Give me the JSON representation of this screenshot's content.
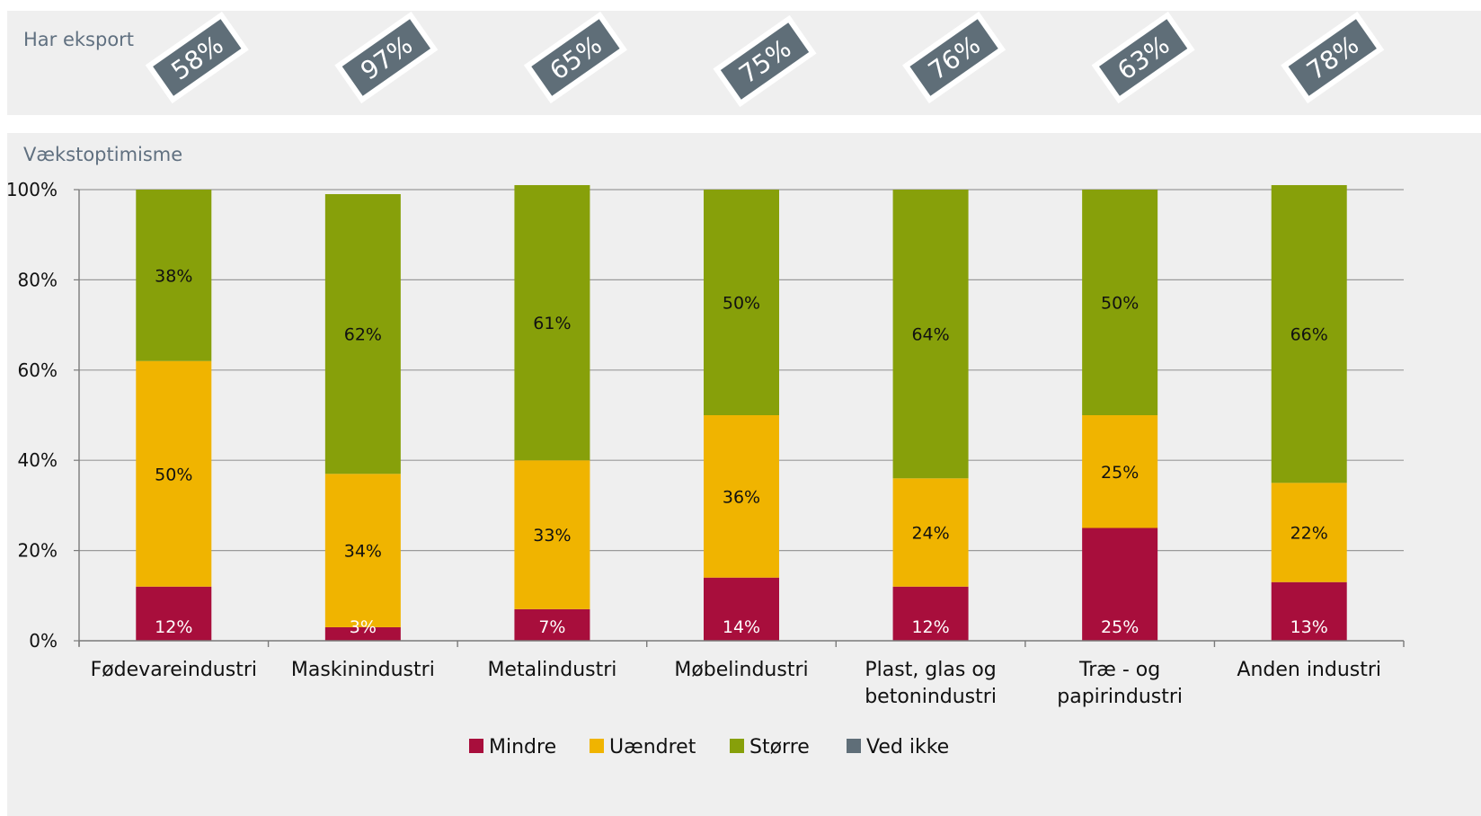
{
  "export_section": {
    "title": "Har eksport",
    "badges": [
      "58%",
      "97%",
      "65%",
      "75%",
      "76%",
      "63%",
      "78%"
    ]
  },
  "chart_section": {
    "title": "Vækstoptimisme"
  },
  "colors": {
    "mindre": "#a80e3c",
    "uaendret": "#f0b400",
    "storre": "#87a00a",
    "ved_ikke": "#5f6e78",
    "badge": "#5f6e78",
    "panel": "#efefef",
    "grid": "#9a9a9a"
  },
  "chart_data": {
    "type": "bar",
    "stacked": true,
    "categories": [
      [
        "Fødevareindustri"
      ],
      [
        "Maskinindustri"
      ],
      [
        "Metalindustri"
      ],
      [
        "Møbelindustri"
      ],
      [
        "Plast, glas og",
        "betonindustri"
      ],
      [
        "Træ - og",
        "papirindustri"
      ],
      [
        "Anden industri"
      ]
    ],
    "series": [
      {
        "name": "Mindre",
        "values": [
          12,
          3,
          7,
          14,
          12,
          25,
          13
        ],
        "labels": [
          "12%",
          "3%",
          "7%",
          "14%",
          "12%",
          "25%",
          "13%"
        ]
      },
      {
        "name": "Uændret",
        "values": [
          50,
          34,
          33,
          36,
          24,
          25,
          22
        ],
        "labels": [
          "50%",
          "34%",
          "33%",
          "36%",
          "24%",
          "25%",
          "22%"
        ]
      },
      {
        "name": "Større",
        "values": [
          38,
          62,
          61,
          50,
          64,
          50,
          66
        ],
        "labels": [
          "38%",
          "62%",
          "61%",
          "50%",
          "64%",
          "50%",
          "66%"
        ]
      },
      {
        "name": "Ved ikke",
        "values": [
          0,
          0,
          0,
          0,
          0,
          0,
          0
        ],
        "labels": [
          "",
          "",
          "",
          "",
          "",
          "",
          ""
        ]
      }
    ],
    "yticks": [
      "0%",
      "20%",
      "40%",
      "60%",
      "80%",
      "100%"
    ],
    "ylim": [
      0,
      100
    ],
    "grid": true,
    "legend": "bottom"
  }
}
